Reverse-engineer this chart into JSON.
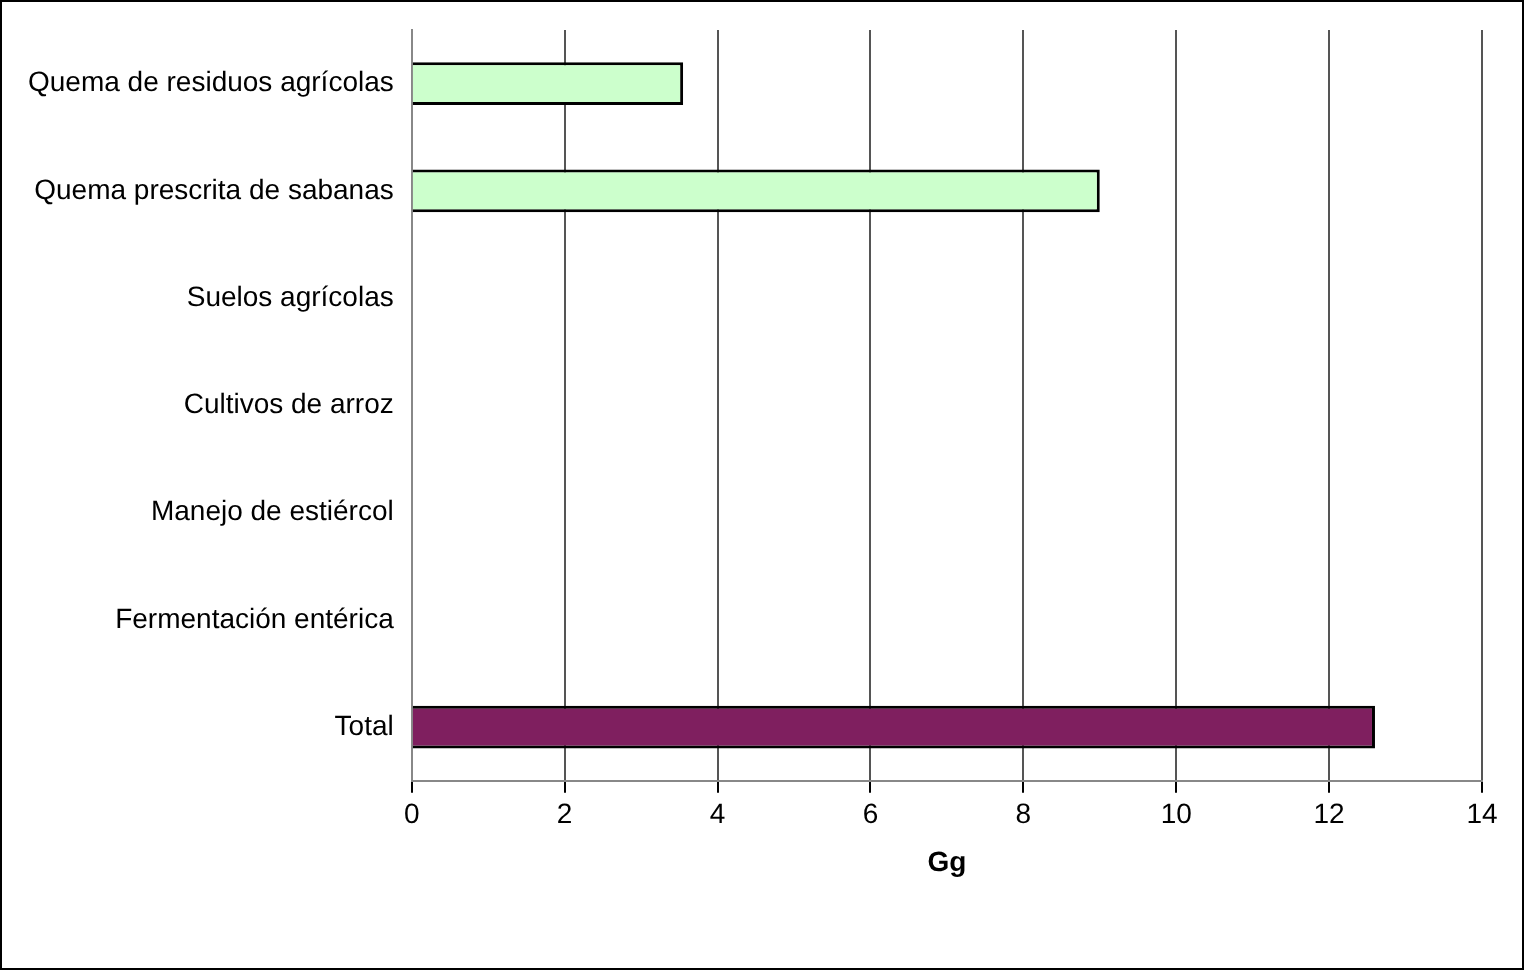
{
  "chart_data": {
    "type": "bar",
    "orientation": "horizontal",
    "xlabel": "Gg",
    "categories": [
      "Quema de residuos agrícolas",
      "Quema prescrita de sabanas",
      "Suelos agrícolas",
      "Cultivos de arroz",
      "Manejo de estiércol",
      "Fermentación entérica",
      "Total"
    ],
    "values": [
      3.55,
      9.0,
      0,
      0,
      0,
      0,
      12.6
    ],
    "colors": [
      "#ccffcc",
      "#ccffcc",
      "#ccffcc",
      "#ccffcc",
      "#ccffcc",
      "#ccffcc",
      "#7f1f5f"
    ],
    "xlim": [
      0,
      14
    ],
    "xticks": [
      0,
      2,
      4,
      6,
      8,
      10,
      12,
      14
    ],
    "grid": "x",
    "legend": false
  }
}
